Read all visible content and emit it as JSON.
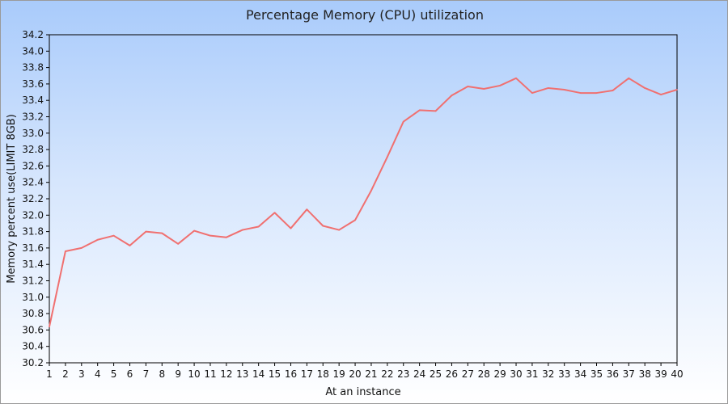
{
  "chart_data": {
    "type": "line",
    "title": "Percentage Memory (CPU) utilization",
    "xlabel": "At an instance",
    "ylabel": "Memory percent use(LIMIT 8GB)",
    "x": [
      1,
      2,
      3,
      4,
      5,
      6,
      7,
      8,
      9,
      10,
      11,
      12,
      13,
      14,
      15,
      16,
      17,
      18,
      19,
      20,
      21,
      22,
      23,
      24,
      25,
      26,
      27,
      28,
      29,
      30,
      31,
      32,
      33,
      34,
      35,
      36,
      37,
      38,
      39,
      40
    ],
    "series": [
      {
        "values": [
          30.64,
          31.56,
          31.6,
          31.7,
          31.75,
          31.63,
          31.8,
          31.78,
          31.65,
          31.81,
          31.75,
          31.73,
          31.82,
          31.86,
          32.03,
          31.84,
          32.07,
          31.87,
          31.82,
          31.94,
          32.3,
          32.71,
          33.14,
          33.28,
          33.27,
          33.46,
          33.57,
          33.54,
          33.58,
          33.67,
          33.49,
          33.55,
          33.53,
          33.49,
          33.49,
          33.52,
          33.67,
          33.55,
          33.47,
          33.53
        ],
        "color": "#f07070"
      }
    ],
    "xlim": [
      1,
      40
    ],
    "ylim": [
      30.2,
      34.2
    ],
    "yticks": [
      "30.2",
      "30.4",
      "30.6",
      "30.8",
      "31.0",
      "31.2",
      "31.4",
      "31.6",
      "31.8",
      "32.0",
      "32.2",
      "32.4",
      "32.6",
      "32.8",
      "33.0",
      "33.2",
      "33.4",
      "33.6",
      "33.8",
      "34.0",
      "34.2"
    ],
    "xticks": [
      "1",
      "2",
      "3",
      "4",
      "5",
      "6",
      "7",
      "8",
      "9",
      "10",
      "11",
      "12",
      "13",
      "14",
      "15",
      "16",
      "17",
      "18",
      "19",
      "20",
      "21",
      "22",
      "23",
      "24",
      "25",
      "26",
      "27",
      "28",
      "29",
      "30",
      "31",
      "32",
      "33",
      "34",
      "35",
      "36",
      "37",
      "38",
      "39",
      "40"
    ],
    "grid": false,
    "legend": "none"
  }
}
